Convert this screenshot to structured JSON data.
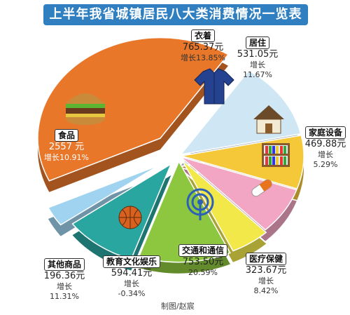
{
  "title": "上半年我省城镇居民八大类消费情况一览表",
  "credit": "制图/赵宸",
  "chart_data": {
    "type": "pie",
    "unit": "元",
    "growth_label": "增长",
    "slices": [
      {
        "name": "食品",
        "amount": "2557 元",
        "growth": "增长10.91%",
        "value": 2557,
        "color": "#e9772a",
        "icon": "hamburger-icon"
      },
      {
        "name": "衣着",
        "amount": "765.37元",
        "growth": "增长13.85%",
        "value": 765.37,
        "color": "#cfe6f5",
        "icon": "shirt-icon"
      },
      {
        "name": "居住",
        "amount": "531.05元",
        "growth_prefix": "增长",
        "growth": "11.67%",
        "value": 531.05,
        "color": "#f5c83a",
        "icon": "house-icon"
      },
      {
        "name": "家庭设备",
        "amount": "469.88元",
        "growth_prefix": "增长",
        "growth": "5.29%",
        "value": 469.88,
        "color": "#f3a6c4",
        "icon": "bookshelf-icon"
      },
      {
        "name": "医疗保健",
        "amount": "323.67元",
        "growth_prefix": "增长",
        "growth": "8.42%",
        "value": 323.67,
        "color": "#f2e84a",
        "icon": "pill-icon"
      },
      {
        "name": "交通和通信",
        "amount": "753.50元",
        "growth": "20.59%",
        "value": 753.5,
        "color": "#8dc63f",
        "icon": "antenna-icon"
      },
      {
        "name": "教育文化娱乐",
        "amount": "594.41元",
        "growth_prefix": "增长",
        "growth": "-0.34%",
        "value": 594.41,
        "color": "#2aa6a0",
        "icon": "basketball-icon"
      },
      {
        "name": "其他商品",
        "amount": "196.36元",
        "growth_prefix": "增长",
        "growth": "11.31%",
        "value": 196.36,
        "color": "#9fd3ef",
        "icon": ""
      }
    ]
  }
}
